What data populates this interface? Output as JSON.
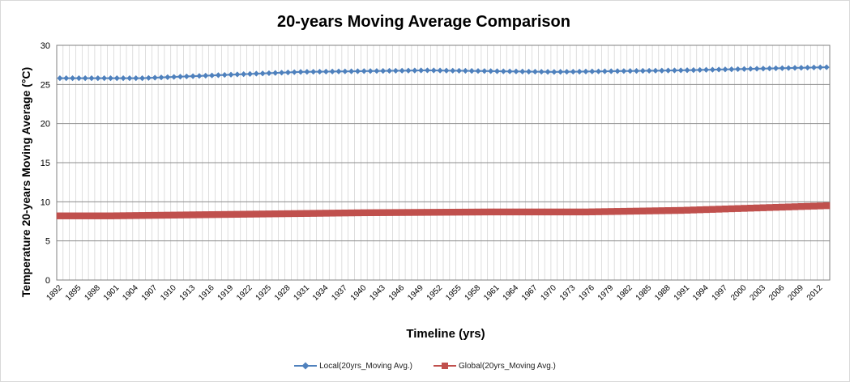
{
  "chart_data": {
    "type": "line",
    "title": "20-years Moving Average Comparison",
    "xlabel": "Timeline (yrs)",
    "ylabel": "Temperature 20-years Moving Average (°C)",
    "ylim": [
      0,
      30
    ],
    "yticks": [
      0,
      5,
      10,
      15,
      20,
      25,
      30
    ],
    "x_start": 1892,
    "x_end": 2013,
    "x_tick_labels": [
      "1892",
      "1895",
      "1898",
      "1901",
      "1904",
      "1907",
      "1910",
      "1913",
      "1916",
      "1919",
      "1922",
      "1925",
      "1928",
      "1931",
      "1934",
      "1937",
      "1940",
      "1943",
      "1946",
      "1949",
      "1952",
      "1955",
      "1958",
      "1961",
      "1964",
      "1967",
      "1970",
      "1973",
      "1976",
      "1979",
      "1982",
      "1985",
      "1988",
      "1991",
      "1994",
      "1997",
      "2000",
      "2003",
      "2006",
      "2009",
      "2012"
    ],
    "grid": true,
    "legend_position": "bottom",
    "series": [
      {
        "name": "Local(20yrs_Moving Avg.)",
        "color": "#4f81bd",
        "marker": "diamond",
        "anchors": [
          [
            1892,
            25.8
          ],
          [
            1905,
            25.8
          ],
          [
            1930,
            26.6
          ],
          [
            1950,
            26.8
          ],
          [
            1970,
            26.6
          ],
          [
            1990,
            26.8
          ],
          [
            2013,
            27.2
          ]
        ]
      },
      {
        "name": "Global(20yrs_Moving Avg.)",
        "color": "#c0504d",
        "marker": "square",
        "anchors": [
          [
            1892,
            8.2
          ],
          [
            1900,
            8.2
          ],
          [
            1920,
            8.4
          ],
          [
            1940,
            8.6
          ],
          [
            1960,
            8.7
          ],
          [
            1975,
            8.7
          ],
          [
            1990,
            8.9
          ],
          [
            2013,
            9.5
          ]
        ]
      }
    ]
  }
}
